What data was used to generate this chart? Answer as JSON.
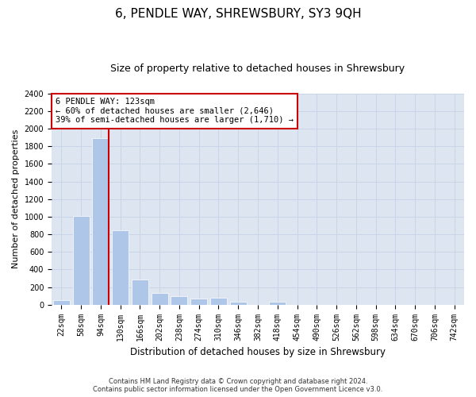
{
  "title": "6, PENDLE WAY, SHREWSBURY, SY3 9QH",
  "subtitle": "Size of property relative to detached houses in Shrewsbury",
  "xlabel": "Distribution of detached houses by size in Shrewsbury",
  "ylabel": "Number of detached properties",
  "footer_line1": "Contains HM Land Registry data © Crown copyright and database right 2024.",
  "footer_line2": "Contains public sector information licensed under the Open Government Licence v3.0.",
  "bin_labels": [
    "22sqm",
    "58sqm",
    "94sqm",
    "130sqm",
    "166sqm",
    "202sqm",
    "238sqm",
    "274sqm",
    "310sqm",
    "346sqm",
    "382sqm",
    "418sqm",
    "454sqm",
    "490sqm",
    "526sqm",
    "562sqm",
    "598sqm",
    "634sqm",
    "670sqm",
    "706sqm",
    "742sqm"
  ],
  "bar_values": [
    50,
    1010,
    1890,
    850,
    290,
    130,
    100,
    65,
    80,
    30,
    0,
    30,
    0,
    0,
    0,
    0,
    0,
    0,
    0,
    0,
    0
  ],
  "bar_color": "#aec6e8",
  "bar_edge_color": "#ffffff",
  "property_line_color": "#cc0000",
  "annotation_text": "6 PENDLE WAY: 123sqm\n← 60% of detached houses are smaller (2,646)\n39% of semi-detached houses are larger (1,710) →",
  "annotation_box_facecolor": "#ffffff",
  "annotation_box_edgecolor": "#cc0000",
  "ylim": [
    0,
    2400
  ],
  "yticks": [
    0,
    200,
    400,
    600,
    800,
    1000,
    1200,
    1400,
    1600,
    1800,
    2000,
    2200,
    2400
  ],
  "grid_color": "#c8d4e8",
  "plot_background": "#dde5f0",
  "title_fontsize": 11,
  "subtitle_fontsize": 9,
  "ylabel_fontsize": 8,
  "xlabel_fontsize": 8.5,
  "tick_fontsize": 7,
  "footer_fontsize": 6,
  "annotation_fontsize": 7.5
}
